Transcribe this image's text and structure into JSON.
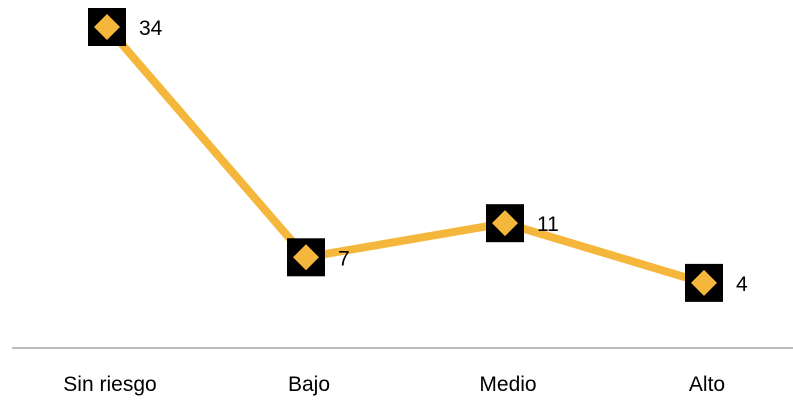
{
  "chart_data": {
    "type": "line",
    "categories": [
      "Sin riesgo",
      "Bajo",
      "Medio",
      "Alto"
    ],
    "values": [
      34,
      7,
      11,
      4
    ],
    "title": "",
    "xlabel": "",
    "ylabel": "",
    "ylim": [
      0,
      36
    ],
    "grid": false,
    "legend": "none",
    "data_labels": [
      "34",
      "7",
      "11",
      "4"
    ],
    "colors": {
      "line": "#F4B73B",
      "marker_fill": "#F4B73B",
      "marker_box": "#000000",
      "axis": "#A6A6A6"
    }
  }
}
